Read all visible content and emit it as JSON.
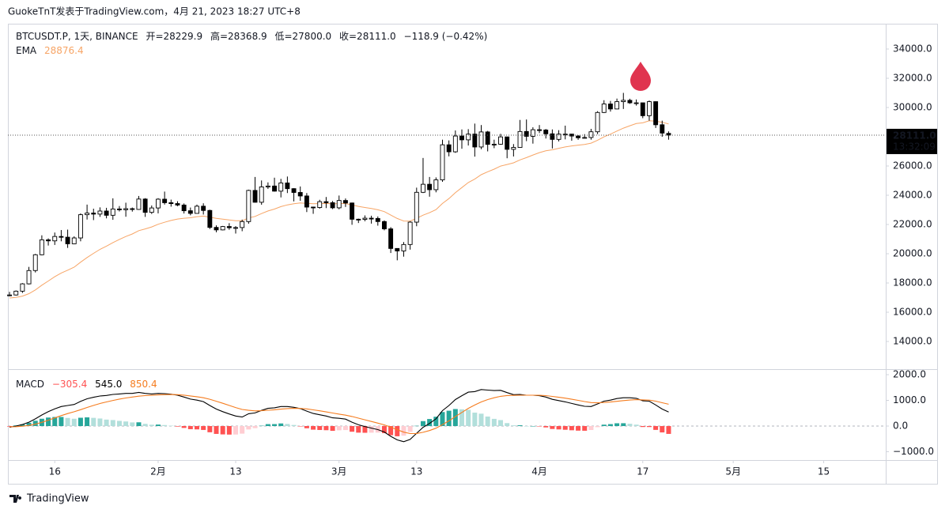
{
  "header": {
    "text": "GuokeTnT发表于TradingView.com，4月 21, 2023 18:27 UTC+8"
  },
  "footer": {
    "brand": "TradingView"
  },
  "chart_data": {
    "type": "candlestick",
    "symbol": "BTCUSDT.P, 1天, BINANCE",
    "ohlc_labels": [
      "开=28229.9",
      "高=28368.9",
      "低=27800.0",
      "收=28111.0"
    ],
    "change_label": "−118.9 (−0.42%)",
    "up_color": "#ffffff",
    "down_color": "#000000",
    "open": [
      17130,
      17180,
      17440,
      17940,
      18850,
      19930,
      20950,
      20880,
      21180,
      21130,
      20680,
      21080,
      22670,
      22780,
      22710,
      22920,
      22630,
      23060,
      23010,
      23080,
      23030,
      23740,
      22830,
      23130,
      23730,
      23490,
      23430,
      23330,
      22940,
      22760,
      23250,
      22960,
      21800,
      21630,
      21860,
      21780,
      21790,
      22200,
      24330,
      23520,
      24570,
      24630,
      24280,
      24840,
      24450,
      24190,
      23950,
      23190,
      23160,
      23560,
      23490,
      23140,
      23640,
      23470,
      22360,
      22350,
      22430,
      22410,
      22200,
      21700,
      20360,
      20190,
      20630,
      22160,
      24200,
      24750,
      24380,
      25050,
      27450,
      26970,
      28050,
      27790,
      28180,
      27300,
      28330,
      27480,
      27490,
      27990,
      27140,
      27270,
      28360,
      28030,
      28480,
      28460,
      28200,
      27820,
      28180,
      28180,
      28050,
      27930,
      27950,
      28340,
      29660,
      30240,
      29900,
      30400,
      30490,
      30320,
      30320,
      29440,
      30400,
      28820,
      28229.9
    ],
    "high": [
      17390,
      17490,
      17990,
      19100,
      19990,
      21260,
      21050,
      21450,
      21620,
      21650,
      21190,
      22760,
      23360,
      23080,
      23170,
      23140,
      23790,
      23260,
      23490,
      23160,
      23950,
      23800,
      23300,
      23800,
      24250,
      23700,
      23590,
      23440,
      23160,
      23360,
      23450,
      23010,
      21940,
      21900,
      22090,
      21890,
      22330,
      24380,
      25250,
      25010,
      24880,
      25200,
      25120,
      25280,
      24480,
      24600,
      24150,
      23220,
      23690,
      23880,
      23610,
      23980,
      23780,
      23500,
      22400,
      22620,
      22600,
      22550,
      22280,
      21820,
      20360,
      20800,
      22230,
      24520,
      26550,
      25250,
      25220,
      27800,
      27750,
      28430,
      28500,
      28520,
      28900,
      28800,
      28400,
      27800,
      28200,
      28000,
      27500,
      29150,
      29180,
      28650,
      28800,
      28530,
      28500,
      28450,
      28760,
      28200,
      28110,
      28180,
      28540,
      29750,
      30500,
      30450,
      30610,
      31000,
      30600,
      30550,
      30330,
      30480,
      30420,
      29100,
      28368.9
    ],
    "low": [
      17090,
      17140,
      17320,
      17900,
      18720,
      19890,
      20560,
      20600,
      20850,
      20400,
      20650,
      20850,
      22340,
      22300,
      22520,
      22420,
      22320,
      22890,
      22530,
      22880,
      23000,
      22520,
      22720,
      22760,
      23360,
      23220,
      23250,
      22750,
      22630,
      22750,
      22680,
      21690,
      21470,
      21600,
      21640,
      21380,
      21540,
      22050,
      23500,
      23350,
      24430,
      24250,
      23850,
      24150,
      23580,
      23620,
      22850,
      22730,
      23080,
      23120,
      23050,
      23040,
      23200,
      21980,
      22100,
      22220,
      22060,
      21920,
      21600,
      20050,
      19550,
      19800,
      20280,
      21880,
      24150,
      23900,
      24200,
      24920,
      26660,
      26900,
      27180,
      27400,
      26640,
      27150,
      27000,
      27220,
      27450,
      26530,
      26650,
      27250,
      27700,
      27530,
      28250,
      27880,
      27200,
      27680,
      27820,
      27730,
      27790,
      27880,
      27800,
      28180,
      29620,
      29720,
      29880,
      29900,
      30250,
      30130,
      29270,
      29100,
      28600,
      28000,
      27800.0
    ],
    "close": [
      17180,
      17440,
      17940,
      18850,
      19930,
      20950,
      20880,
      21180,
      21130,
      20680,
      21080,
      22670,
      22780,
      22710,
      22920,
      22630,
      23060,
      23010,
      23080,
      23030,
      23740,
      22830,
      23130,
      23730,
      23490,
      23430,
      23330,
      22940,
      22760,
      23250,
      22960,
      21800,
      21630,
      21860,
      21780,
      21790,
      22200,
      24330,
      23520,
      24570,
      24630,
      24280,
      24840,
      24450,
      24190,
      23950,
      23190,
      23160,
      23560,
      23490,
      23140,
      23640,
      23470,
      22360,
      22350,
      22430,
      22410,
      22200,
      21700,
      20360,
      20190,
      20630,
      22160,
      24200,
      24750,
      24380,
      25050,
      27450,
      26970,
      28050,
      27790,
      28180,
      27300,
      28330,
      27480,
      27490,
      27990,
      27140,
      27270,
      28360,
      28030,
      28480,
      28460,
      28200,
      27820,
      28180,
      28180,
      28050,
      27930,
      27950,
      28340,
      29660,
      30240,
      29900,
      30400,
      30490,
      30320,
      30320,
      29440,
      30400,
      28820,
      28250,
      28111.0
    ],
    "xlim": [
      -0.25,
      135.6
    ],
    "xticks": [
      {
        "value": 7,
        "label": "16"
      },
      {
        "value": 23,
        "label": "2月"
      },
      {
        "value": 35,
        "label": "13"
      },
      {
        "value": 51,
        "label": "3月"
      },
      {
        "value": 63,
        "label": "13"
      },
      {
        "value": 82,
        "label": "4月"
      },
      {
        "value": 98,
        "label": "17"
      },
      {
        "value": 112,
        "label": "5月"
      },
      {
        "value": 126,
        "label": "15"
      }
    ],
    "ylim": [
      12108,
      35730
    ],
    "yticks": [
      {
        "value": 14000,
        "label": "14000.0"
      },
      {
        "value": 16000,
        "label": "16000.0"
      },
      {
        "value": 18000,
        "label": "18000.0"
      },
      {
        "value": 20000,
        "label": "20000.0"
      },
      {
        "value": 22000,
        "label": "22000.0"
      },
      {
        "value": 24000,
        "label": "24000.0"
      },
      {
        "value": 26000,
        "label": "26000.0"
      },
      {
        "value": 28000,
        "label": "28000.0"
      },
      {
        "value": 30000,
        "label": "30000.0"
      },
      {
        "value": 32000,
        "label": "32000.0"
      },
      {
        "value": 34000,
        "label": "34000.0"
      }
    ],
    "last_price_label": "28111.0",
    "countdown": "13:32:09",
    "ema": {
      "name": "EMA",
      "color": "#f7a566",
      "last_label": "28876.4",
      "values": [
        16972,
        17016,
        17104,
        17270,
        17523,
        17849,
        18137,
        18426,
        18683,
        18873,
        19083,
        19424,
        19743,
        20025,
        20300,
        20521,
        20762,
        20976,
        21176,
        21352,
        21579,
        21698,
        21834,
        22014,
        22154,
        22275,
        22375,
        22429,
        22460,
        22535,
        22575,
        22501,
        22418,
        22365,
        22309,
        22260,
        22254,
        22451,
        22553,
        22745,
        22924,
        23053,
        23223,
        23340,
        23421,
        23471,
        23444,
        23417,
        23431,
        23437,
        23409,
        23431,
        23435,
        23333,
        23240,
        23163,
        23091,
        23006,
        22882,
        22642,
        22409,
        22240,
        22232,
        22419,
        22640,
        22805,
        23018,
        23439,
        23774,
        24180,
        24523,
        24870,
        25101,
        25408,
        25605,
        25784,
        25994,
        26103,
        26214,
        26418,
        26571,
        26752,
        26914,
        27036,
        27110,
        27212,
        27304,
        27375,
        27428,
        27478,
        27560,
        27760,
        27996,
        28177,
        28388,
        28588,
        28753,
        28902,
        28953,
        29090,
        29064,
        28987,
        28876.4
      ]
    },
    "macd": {
      "name": "MACD",
      "ylim": [
        -1323,
        2215
      ],
      "yticks": [
        {
          "value": -1000,
          "label": "−1000.0"
        },
        {
          "value": 0,
          "label": "0.0"
        },
        {
          "value": 1000,
          "label": "1000.0"
        },
        {
          "value": 2000,
          "label": "2000.0"
        }
      ],
      "histogram": {
        "last_label": "−305.4",
        "colors": {
          "pos_up": "#26a69a",
          "pos_down": "#b2dfdb",
          "neg_down": "#ff5252",
          "neg_up": "#ffcdd2"
        },
        "values": [
          -20,
          24,
          67,
          126,
          205,
          284,
          331,
          353,
          354,
          315,
          284,
          323,
          338,
          318,
          294,
          251,
          233,
          202,
          178,
          142,
          146,
          85,
          52,
          58,
          38,
          14,
          -21,
          -73,
          -122,
          -130,
          -152,
          -242,
          -306,
          -325,
          -332,
          -330,
          -296,
          -133,
          -82,
          14,
          75,
          76,
          101,
          81,
          41,
          -7,
          -86,
          -141,
          -153,
          -162,
          -186,
          -165,
          -156,
          -221,
          -257,
          -262,
          -258,
          -254,
          -275,
          -356,
          -397,
          -374,
          -227,
          10,
          192,
          274,
          363,
          546,
          597,
          662,
          650,
          632,
          522,
          482,
          370,
          280,
          232,
          114,
          27,
          30,
          0,
          0,
          -16,
          -53,
          -114,
          -131,
          -145,
          -164,
          -179,
          -183,
          -154,
          -43,
          54,
          75,
          108,
          110,
          88,
          54,
          -37,
          -38,
          -150,
          -248,
          -305.4
        ]
      },
      "series": [
        {
          "color": "#000000",
          "last_label": "545.0",
          "values": [
            -50,
            0,
            60,
            150,
            280,
            430,
            560,
            670,
            760,
            800,
            840,
            960,
            1060,
            1120,
            1170,
            1190,
            1230,
            1250,
            1270,
            1270,
            1310,
            1270,
            1250,
            1270,
            1260,
            1240,
            1200,
            1130,
            1050,
            1010,
            950,
            800,
            660,
            560,
            470,
            390,
            350,
            480,
            510,
            610,
            690,
            710,
            760,
            760,
            730,
            680,
            580,
            490,
            440,
            390,
            320,
            300,
            270,
            150,
            50,
            -20,
            -80,
            -140,
            -230,
            -400,
            -540,
            -610,
            -520,
            -280,
            -50,
            100,
            280,
            600,
            800,
            1030,
            1180,
            1320,
            1340,
            1420,
            1400,
            1380,
            1390,
            1300,
            1220,
            1230,
            1200,
            1200,
            1180,
            1130,
            1040,
            990,
            940,
            880,
            820,
            770,
            760,
            860,
            970,
            1010,
            1070,
            1100,
            1100,
            1080,
            980,
            970,
            820,
            660,
            545.0
          ]
        },
        {
          "color": "#f57c1f",
          "last_label": "850.4",
          "values": [
            -30,
            -24,
            -7,
            24,
            75,
            146,
            229,
            317,
            406,
            485,
            556,
            637,
            722,
            802,
            876,
            939,
            997,
            1048,
            1092,
            1128,
            1164,
            1185,
            1198,
            1212,
            1222,
            1226,
            1221,
            1203,
            1172,
            1140,
            1102,
            1042,
            966,
            885,
            802,
            720,
            646,
            613,
            592,
            596,
            615,
            634,
            659,
            679,
            689,
            687,
            666,
            631,
            593,
            552,
            506,
            465,
            426,
            371,
            307,
            242,
            178,
            114,
            45,
            -44,
            -143,
            -236,
            -293,
            -290,
            -242,
            -174,
            -83,
            54,
            203,
            368,
            530,
            688,
            818,
            938,
            1030,
            1100,
            1158,
            1186,
            1193,
            1200,
            1200,
            1200,
            1196,
            1183,
            1154,
            1121,
            1085,
            1044,
            999,
            953,
            914,
            903,
            916,
            935,
            962,
            990,
            1012,
            1026,
            1017,
            1008,
            970,
            908,
            850.4
          ]
        }
      ]
    }
  }
}
